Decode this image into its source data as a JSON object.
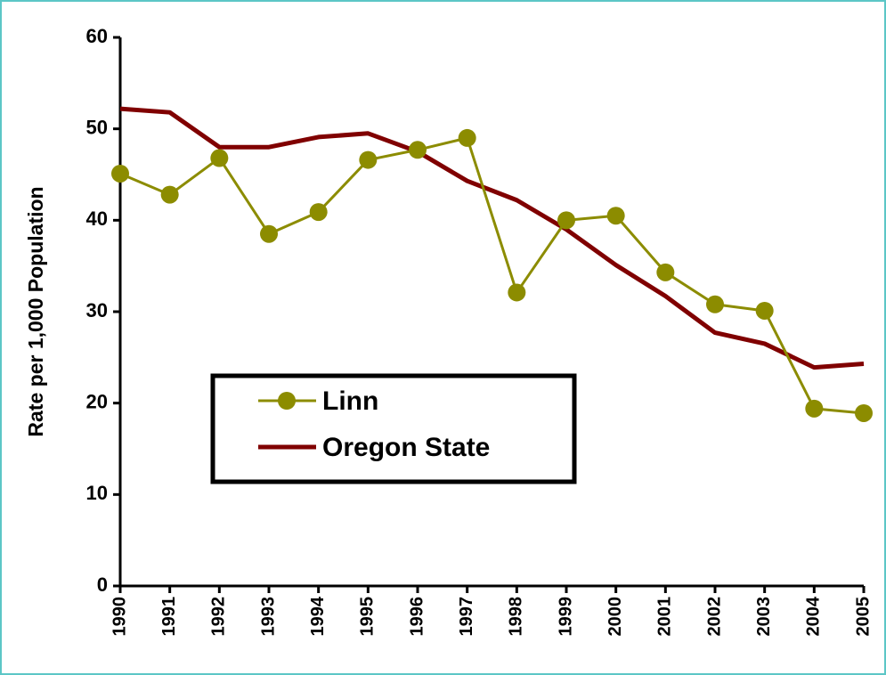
{
  "chart_data": {
    "type": "line",
    "y_label": "Rate per 1,000 Population",
    "categories": [
      "1990",
      "1991",
      "1992",
      "1993",
      "1994",
      "1995",
      "1996",
      "1997",
      "1998",
      "1999",
      "2000",
      "2001",
      "2002",
      "2003",
      "2004",
      "2005"
    ],
    "series": [
      {
        "name": "Linn",
        "color": "#8c8c00",
        "marker": true,
        "values": [
          45.1,
          42.8,
          46.8,
          38.5,
          40.9,
          46.6,
          47.7,
          49.0,
          32.1,
          40.0,
          40.5,
          34.3,
          30.8,
          30.1,
          19.4,
          18.9
        ]
      },
      {
        "name": "Oregon State",
        "color": "#800000",
        "marker": false,
        "values": [
          52.2,
          51.8,
          48.0,
          48.0,
          49.1,
          49.5,
          47.5,
          44.3,
          42.2,
          39.0,
          35.1,
          31.7,
          27.7,
          26.5,
          23.9,
          24.3
        ]
      }
    ],
    "ylim": [
      0,
      60
    ],
    "yticks": [
      0,
      10,
      20,
      30,
      40,
      50,
      60
    ]
  }
}
